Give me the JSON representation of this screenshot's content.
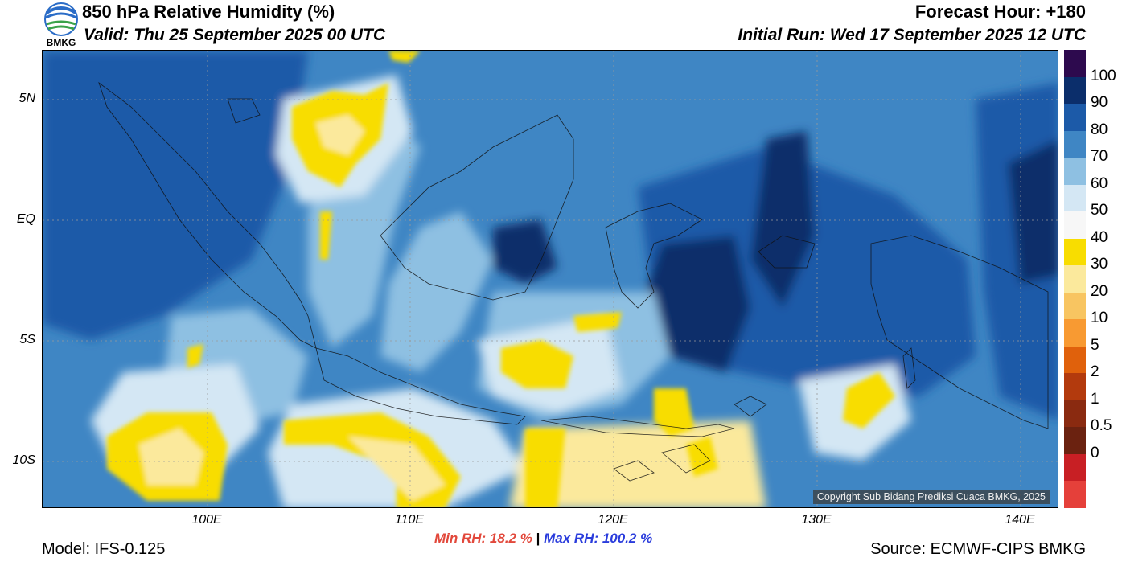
{
  "header": {
    "title": "850 hPa Relative Humidity (%)",
    "valid": "Valid: Thu 25 September 2025 00 UTC",
    "forecast_hour": "Forecast Hour: +180",
    "initial_run": "Initial Run: Wed 17 September 2025 12 UTC",
    "logo_text": "BMKG"
  },
  "map": {
    "lat_labels": [
      "5N",
      "EQ",
      "5S",
      "10S"
    ],
    "lon_labels": [
      "100E",
      "110E",
      "120E",
      "130E",
      "140E"
    ],
    "copyright": "Copyright Sub Bidang Prediksi Cuaca BMKG, 2025"
  },
  "stats": {
    "min_label": "Min RH:  18.2 %",
    "separator": "|",
    "max_label": "Max RH: 100.2 %"
  },
  "footer": {
    "model": "Model: IFS-0.125",
    "source": "Source: ECMWF-CIPS BMKG"
  },
  "colorbar": {
    "labels": [
      "100",
      "90",
      "80",
      "70",
      "60",
      "50",
      "40",
      "30",
      "20",
      "10",
      "5",
      "2",
      "1",
      "0.5",
      "0"
    ],
    "colors": [
      "#2d0a4e",
      "#0b2e6b",
      "#1c5aa8",
      "#3f86c4",
      "#8ec0e2",
      "#d4e7f4",
      "#f7f7f7",
      "#f8dd00",
      "#fbe99c",
      "#f8c561",
      "#f89a32",
      "#e0610c",
      "#b33a0d",
      "#8a2a10",
      "#6b2210",
      "#c81f24",
      "#e5403a"
    ]
  }
}
